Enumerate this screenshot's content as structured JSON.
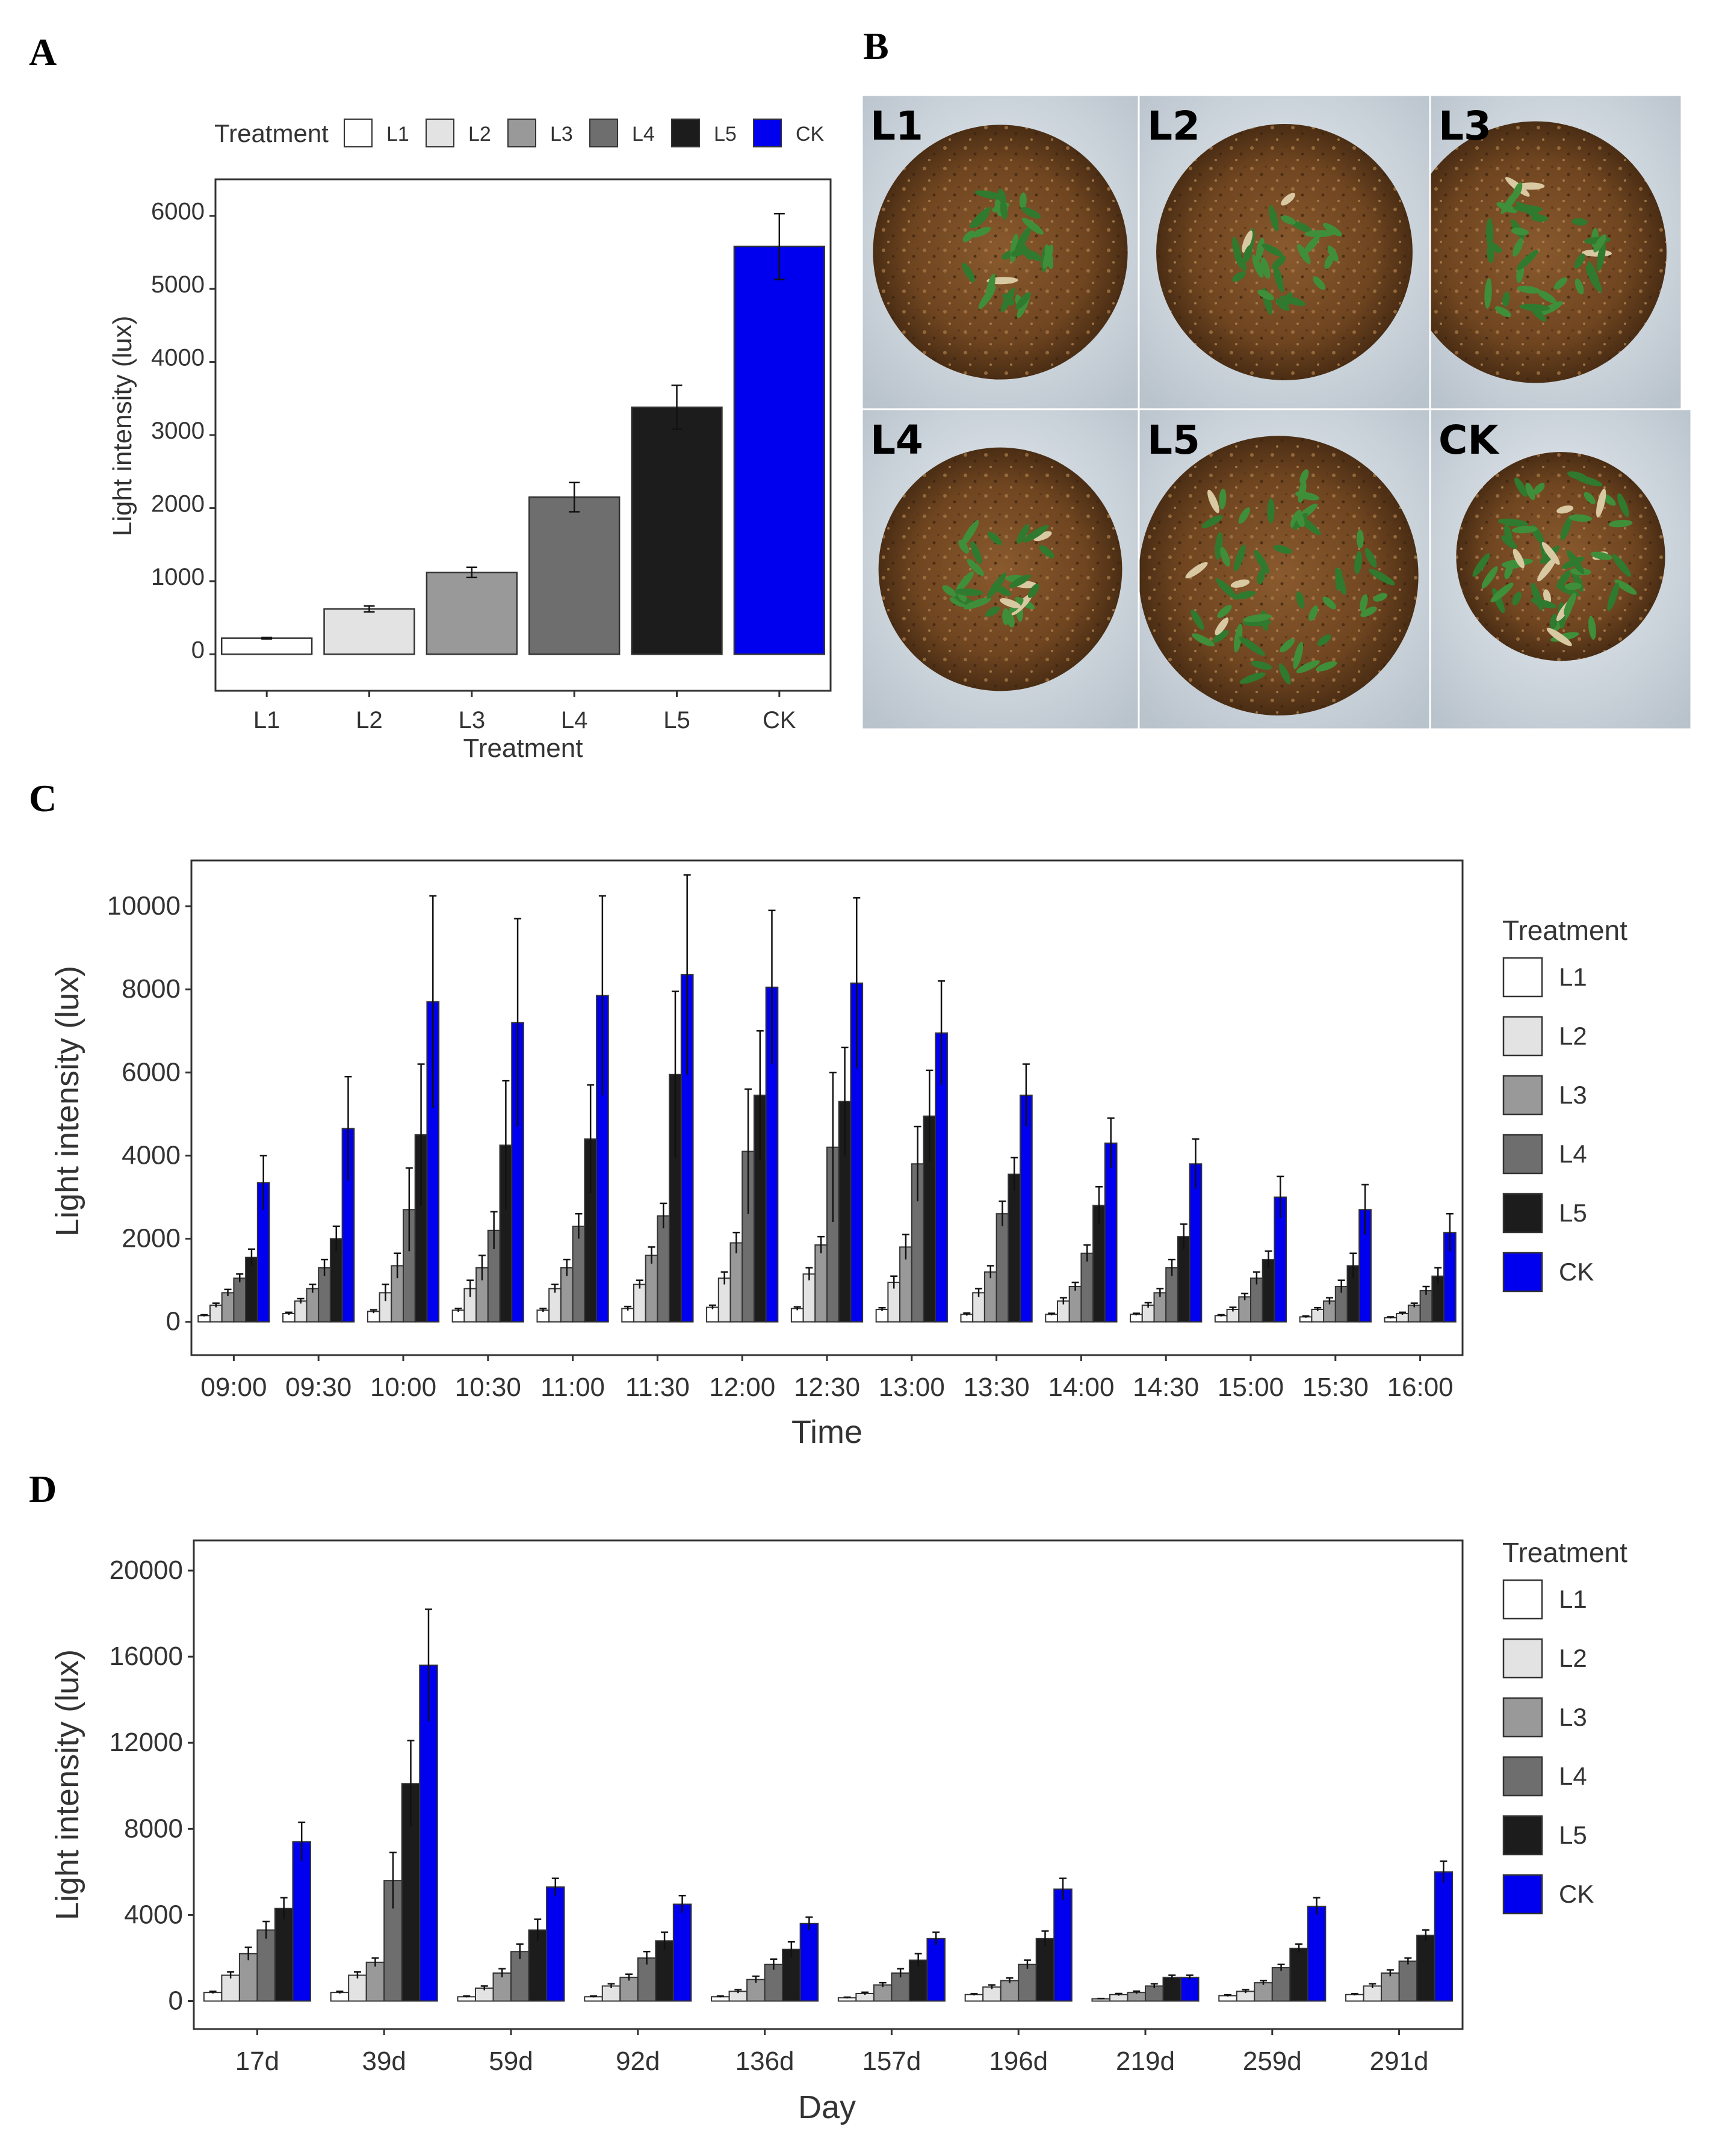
{
  "panels": {
    "a": "A",
    "b": "B",
    "c": "C",
    "d": "D"
  },
  "colors": {
    "L1": "#ffffff",
    "L2": "#e3e3e3",
    "L3": "#999999",
    "L4": "#6e6e6e",
    "L5": "#1c1c1c",
    "CK": "#0000ee"
  },
  "photos": {
    "labels": [
      "L1",
      "L2",
      "L3",
      "L4",
      "L5",
      "CK"
    ],
    "density": [
      0.35,
      0.3,
      0.45,
      0.35,
      0.85,
      0.9
    ]
  },
  "chart_data": [
    {
      "id": "A",
      "type": "bar",
      "legend_title": "Treatment",
      "legend_position": "top",
      "categories": [
        "L1",
        "L2",
        "L3",
        "L4",
        "L5",
        "CK"
      ],
      "values": [
        220,
        620,
        1120,
        2150,
        3380,
        5580
      ],
      "errors": [
        10,
        40,
        70,
        200,
        300,
        450
      ],
      "xlabel": "Treatment",
      "ylabel": "Light intensity (lux)",
      "ylim": [
        -500,
        6500
      ],
      "yticks": [
        0,
        1000,
        2000,
        3000,
        4000,
        5000,
        6000
      ],
      "grid": false
    },
    {
      "id": "C",
      "type": "bar",
      "legend_title": "Treatment",
      "legend_position": "right",
      "categories": [
        "09:00",
        "09:30",
        "10:00",
        "10:30",
        "11:00",
        "11:30",
        "12:00",
        "12:30",
        "13:00",
        "13:30",
        "14:00",
        "14:30",
        "15:00",
        "15:30",
        "16:00"
      ],
      "series": [
        {
          "name": "L1",
          "values": [
            150,
            200,
            250,
            280,
            280,
            320,
            350,
            320,
            300,
            180,
            180,
            180,
            150,
            120,
            100
          ],
          "errors": [
            20,
            30,
            40,
            40,
            40,
            50,
            50,
            40,
            40,
            30,
            25,
            25,
            20,
            20,
            20
          ]
        },
        {
          "name": "L2",
          "values": [
            400,
            500,
            700,
            800,
            800,
            900,
            1050,
            1150,
            950,
            700,
            500,
            400,
            300,
            300,
            200
          ],
          "errors": [
            50,
            60,
            200,
            200,
            100,
            100,
            150,
            150,
            150,
            100,
            80,
            60,
            50,
            40,
            30
          ]
        },
        {
          "name": "L3",
          "values": [
            700,
            800,
            1350,
            1300,
            1300,
            1600,
            1900,
            1850,
            1800,
            1200,
            850,
            700,
            600,
            500,
            400
          ],
          "errors": [
            80,
            100,
            300,
            300,
            200,
            200,
            250,
            200,
            300,
            150,
            100,
            100,
            80,
            80,
            50
          ]
        },
        {
          "name": "L4",
          "values": [
            1050,
            1300,
            2700,
            2200,
            2300,
            2550,
            4100,
            4200,
            3800,
            2600,
            1650,
            1300,
            1050,
            850,
            750
          ],
          "errors": [
            100,
            200,
            1000,
            450,
            300,
            300,
            1500,
            1800,
            900,
            300,
            200,
            200,
            150,
            150,
            100
          ]
        },
        {
          "name": "L5",
          "values": [
            1550,
            2000,
            4500,
            4250,
            4400,
            5950,
            5450,
            5300,
            4950,
            3550,
            2800,
            2050,
            1500,
            1350,
            1100
          ],
          "errors": [
            200,
            300,
            1700,
            1550,
            1300,
            2000,
            1550,
            1300,
            1100,
            400,
            450,
            300,
            200,
            300,
            200
          ]
        },
        {
          "name": "CK",
          "values": [
            3350,
            4650,
            7700,
            7200,
            7850,
            8350,
            8050,
            8150,
            6950,
            5450,
            4300,
            3800,
            3000,
            2700,
            2150
          ],
          "errors": [
            650,
            1250,
            2550,
            2500,
            2400,
            2400,
            1850,
            2050,
            1250,
            750,
            600,
            600,
            500,
            600,
            450
          ]
        }
      ],
      "xlabel": "Time",
      "ylabel": "Light intensity (lux)",
      "ylim": [
        -800,
        11100
      ],
      "yticks": [
        0,
        2000,
        4000,
        6000,
        8000,
        10000
      ],
      "grid": false
    },
    {
      "id": "D",
      "type": "bar",
      "legend_title": "Treatment",
      "legend_position": "right",
      "categories": [
        "17d",
        "39d",
        "59d",
        "92d",
        "136d",
        "157d",
        "196d",
        "219d",
        "259d",
        "291d"
      ],
      "series": [
        {
          "name": "L1",
          "values": [
            400,
            400,
            200,
            200,
            200,
            150,
            300,
            100,
            250,
            300
          ],
          "errors": [
            50,
            50,
            30,
            30,
            30,
            30,
            40,
            20,
            40,
            40
          ]
        },
        {
          "name": "L2",
          "values": [
            1200,
            1200,
            600,
            700,
            450,
            350,
            650,
            300,
            450,
            700
          ],
          "errors": [
            150,
            150,
            100,
            100,
            80,
            60,
            100,
            50,
            80,
            100
          ]
        },
        {
          "name": "L3",
          "values": [
            2200,
            1800,
            1300,
            1100,
            1000,
            750,
            950,
            400,
            850,
            1300
          ],
          "errors": [
            300,
            200,
            200,
            150,
            150,
            100,
            120,
            60,
            100,
            150
          ]
        },
        {
          "name": "L4",
          "values": [
            3300,
            5600,
            2300,
            2000,
            1700,
            1300,
            1700,
            700,
            1550,
            1850
          ],
          "errors": [
            400,
            1300,
            350,
            300,
            250,
            200,
            200,
            100,
            150,
            150
          ]
        },
        {
          "name": "L5",
          "values": [
            4300,
            10100,
            3300,
            2800,
            2400,
            1900,
            2900,
            1100,
            2450,
            3050
          ],
          "errors": [
            500,
            2000,
            500,
            400,
            350,
            300,
            350,
            100,
            200,
            250
          ]
        },
        {
          "name": "CK",
          "values": [
            7400,
            15600,
            5300,
            4500,
            3600,
            2900,
            5200,
            1100,
            4400,
            6000
          ],
          "errors": [
            900,
            2600,
            400,
            400,
            300,
            300,
            500,
            100,
            400,
            500
          ]
        }
      ],
      "xlabel": "Day",
      "ylabel": "Light intensity (lux)",
      "ylim": [
        -1300,
        21400
      ],
      "yticks": [
        0,
        4000,
        8000,
        12000,
        16000,
        20000
      ],
      "grid": false
    }
  ]
}
